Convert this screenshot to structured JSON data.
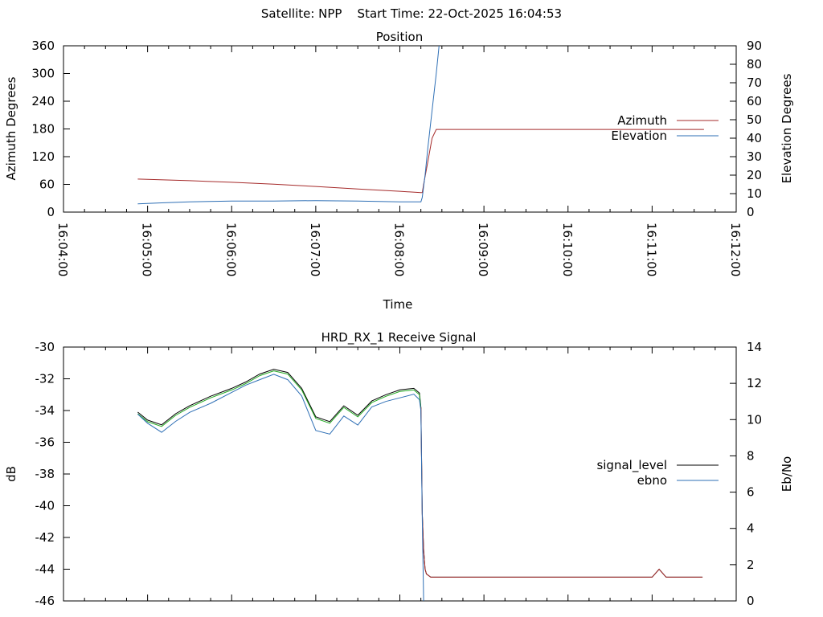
{
  "figure_title": "Satellite: NPP    Start Time: 22-Oct-2025 16:04:53",
  "colors": {
    "azimuth": "#a52a2a",
    "elevation": "#2e6fb5",
    "signal_level": "#000000",
    "signal_after_loss": "#a52a2a",
    "ebno": "#2e6fb5",
    "green_trace": "#22aa22"
  },
  "chart_data": [
    {
      "type": "line",
      "title": "Position",
      "xlabel": "Time",
      "ylabel": "Azimuth Degrees",
      "y2label": "Elevation Degrees",
      "x_ticks": [
        "16:04:00",
        "16:05:00",
        "16:06:00",
        "16:07:00",
        "16:08:00",
        "16:09:00",
        "16:10:00",
        "16:11:00",
        "16:12:00"
      ],
      "xlim": [
        "16:04:00",
        "16:12:00"
      ],
      "ylim": [
        0,
        360
      ],
      "y_ticks": [
        0,
        60,
        120,
        180,
        240,
        300,
        360
      ],
      "y2lim": [
        0,
        90
      ],
      "y2_ticks": [
        0,
        10,
        20,
        30,
        40,
        50,
        60,
        70,
        80,
        90
      ],
      "legend_position": "right",
      "series": [
        {
          "name": "Azimuth",
          "axis": "y",
          "x": [
            "16:04:53",
            "16:05:30",
            "16:06:00",
            "16:06:30",
            "16:07:00",
            "16:07:30",
            "16:08:00",
            "16:08:15",
            "16:08:16",
            "16:08:17",
            "16:08:20",
            "16:08:23",
            "16:08:26",
            "16:09:00",
            "16:10:00",
            "16:11:00",
            "16:11:37"
          ],
          "values": [
            71.5,
            68,
            64.5,
            60.5,
            55.5,
            50,
            45,
            42,
            42,
            60,
            110,
            160,
            179,
            179,
            179,
            179,
            179
          ]
        },
        {
          "name": "Elevation",
          "axis": "y2",
          "x": [
            "16:04:53",
            "16:05:10",
            "16:05:30",
            "16:06:00",
            "16:06:30",
            "16:07:00",
            "16:07:30",
            "16:08:00",
            "16:08:15",
            "16:08:16",
            "16:08:18",
            "16:08:20",
            "16:08:23",
            "16:08:26",
            "16:08:28"
          ],
          "values": [
            4.5,
            5,
            5.5,
            6,
            6,
            6.2,
            6,
            5.5,
            5.5,
            8,
            20,
            35,
            55,
            75,
            90
          ]
        }
      ]
    },
    {
      "type": "line",
      "title": "HRD_RX_1 Receive Signal",
      "xlabel": "",
      "ylabel": "dB",
      "y2label": "Eb/No",
      "x_ticks": [],
      "xlim": [
        "16:04:00",
        "16:12:00"
      ],
      "ylim": [
        -46,
        -30
      ],
      "y_ticks": [
        -46,
        -44,
        -42,
        -40,
        -38,
        -36,
        -34,
        -32,
        -30
      ],
      "y2lim": [
        0,
        14
      ],
      "y2_ticks": [
        0,
        2,
        4,
        6,
        8,
        10,
        12,
        14
      ],
      "legend_position": "right",
      "series": [
        {
          "name": "signal_level",
          "axis": "y",
          "x": [
            "16:04:53",
            "16:05:00",
            "16:05:10",
            "16:05:20",
            "16:05:30",
            "16:05:45",
            "16:06:00",
            "16:06:10",
            "16:06:20",
            "16:06:30",
            "16:06:40",
            "16:06:50",
            "16:07:00",
            "16:07:10",
            "16:07:20",
            "16:07:30",
            "16:07:40",
            "16:07:50",
            "16:08:00",
            "16:08:10",
            "16:08:14",
            "16:08:15",
            "16:08:16",
            "16:08:17",
            "16:08:18",
            "16:08:19",
            "16:08:22",
            "16:08:30",
            "16:09:00",
            "16:09:30",
            "16:10:00",
            "16:10:30",
            "16:11:00",
            "16:11:05",
            "16:11:10",
            "16:11:30",
            "16:11:36"
          ],
          "values": [
            -34.1,
            -34.6,
            -34.9,
            -34.2,
            -33.7,
            -33.1,
            -32.6,
            -32.2,
            -31.7,
            -31.4,
            -31.6,
            -32.6,
            -34.4,
            -34.7,
            -33.7,
            -34.3,
            -33.4,
            -33.0,
            -32.7,
            -32.6,
            -32.9,
            -33.8,
            -40.5,
            -42.8,
            -44.0,
            -44.3,
            -44.5,
            -44.5,
            -44.5,
            -44.5,
            -44.5,
            -44.5,
            -44.5,
            -44.0,
            -44.5,
            -44.5,
            -44.5
          ]
        },
        {
          "name": "ebno",
          "axis": "y2",
          "x": [
            "16:04:53",
            "16:05:00",
            "16:05:10",
            "16:05:20",
            "16:05:30",
            "16:05:45",
            "16:06:00",
            "16:06:10",
            "16:06:20",
            "16:06:30",
            "16:06:40",
            "16:06:50",
            "16:07:00",
            "16:07:10",
            "16:07:20",
            "16:07:30",
            "16:07:40",
            "16:07:50",
            "16:08:00",
            "16:08:10",
            "16:08:14",
            "16:08:15",
            "16:08:16",
            "16:08:17"
          ],
          "values": [
            10.3,
            9.8,
            9.3,
            9.9,
            10.4,
            10.9,
            11.5,
            11.9,
            12.2,
            12.5,
            12.2,
            11.3,
            9.4,
            9.2,
            10.2,
            9.7,
            10.7,
            11.0,
            11.2,
            11.4,
            11.1,
            10.5,
            4.5,
            0
          ]
        }
      ]
    }
  ]
}
